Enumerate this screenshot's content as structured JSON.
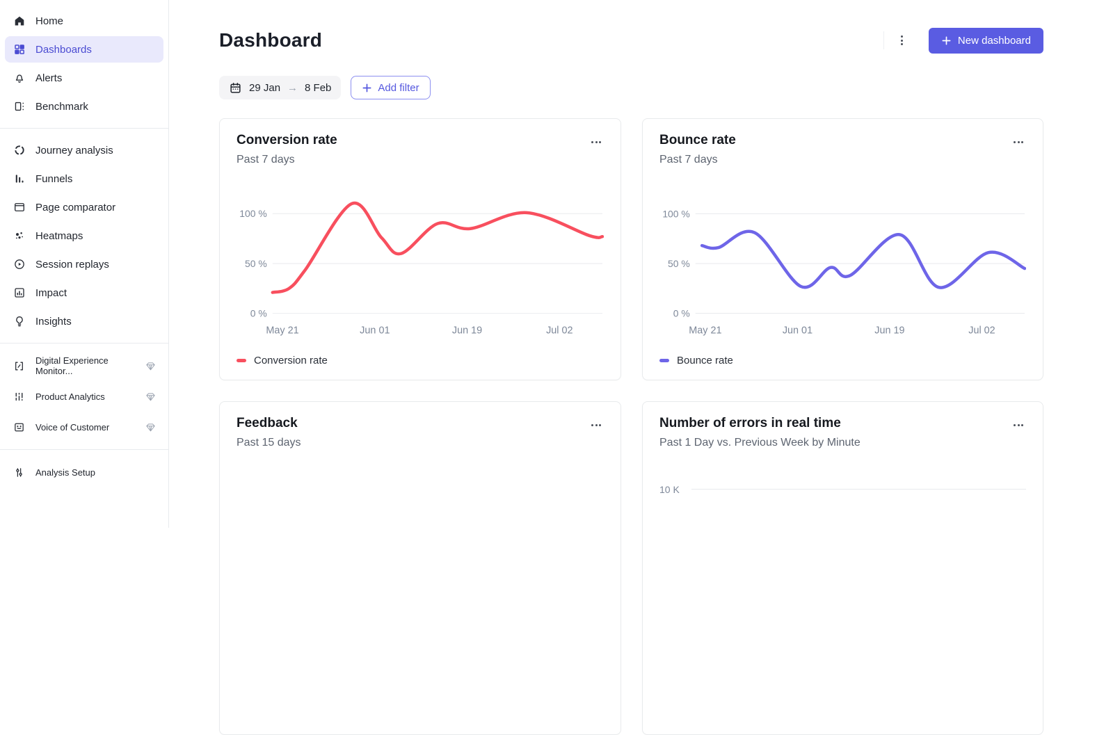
{
  "theme": {
    "primary": "#5A5CE2",
    "sidebar_active_bg": "#E9E9FC",
    "sidebar_active_text": "#4A4BD2",
    "card_border": "#E8EAEC",
    "grid_line": "#E8EAED",
    "tick_text": "#7E8899"
  },
  "sidebar": {
    "groups": [
      {
        "items": [
          {
            "label": "Home",
            "icon": "home-icon"
          },
          {
            "label": "Dashboards",
            "icon": "dashboards-icon",
            "active": true
          },
          {
            "label": "Alerts",
            "icon": "bell-icon"
          },
          {
            "label": "Benchmark",
            "icon": "benchmark-icon"
          }
        ]
      },
      {
        "items": [
          {
            "label": "Journey analysis",
            "icon": "journey-analysis-icon"
          },
          {
            "label": "Funnels",
            "icon": "funnels-icon"
          },
          {
            "label": "Page comparator",
            "icon": "page-comparator-icon"
          },
          {
            "label": "Heatmaps",
            "icon": "heatmaps-icon"
          },
          {
            "label": "Session replays",
            "icon": "session-replays-icon"
          },
          {
            "label": "Impact",
            "icon": "impact-icon"
          },
          {
            "label": "Insights",
            "icon": "insights-icon"
          }
        ]
      },
      {
        "items": [
          {
            "label": "Digital Experience Monitor...",
            "icon": "dem-icon",
            "premium": true
          },
          {
            "label": "Product Analytics",
            "icon": "product-analytics-icon",
            "premium": true
          },
          {
            "label": "Voice of Customer",
            "icon": "voice-of-customer-icon",
            "premium": true
          }
        ]
      },
      {
        "items": [
          {
            "label": "Analysis Setup",
            "icon": "analysis-setup-icon"
          }
        ]
      }
    ]
  },
  "header": {
    "title": "Dashboard",
    "menu_icon": "kebab-icon",
    "new_dashboard_button": {
      "icon": "plus-icon",
      "label": "New dashboard"
    }
  },
  "filter_bar": {
    "date_range": {
      "icon": "calendar-icon",
      "start": "29 Jan",
      "arrow": "→",
      "end": "8 Feb"
    },
    "add_filter_button": {
      "icon": "plus-icon",
      "label": "Add filter"
    }
  },
  "chart_data": [
    {
      "type": "line",
      "title": "Conversion rate",
      "subtitle": "Past 7 days",
      "ylabel_unit": "%",
      "ylim": [
        0,
        115
      ],
      "grid": "horizontal",
      "legend_position": "bottom-left",
      "yticks": [
        {
          "label": "100 %",
          "value": 100
        },
        {
          "label": "50 %",
          "value": 50
        },
        {
          "label": "0 %",
          "value": 0
        }
      ],
      "xticks": [
        {
          "label": "May 21",
          "pos": 0.03
        },
        {
          "label": "Jun 01",
          "pos": 0.31
        },
        {
          "label": "Jun 19",
          "pos": 0.59
        },
        {
          "label": "Jul 02",
          "pos": 0.87
        }
      ],
      "series": [
        {
          "name": "Conversion rate",
          "color": "#F84F5E",
          "points": [
            [
              0,
              21
            ],
            [
              0.05,
              25
            ],
            [
              0.1,
              44
            ],
            [
              0.24,
              110
            ],
            [
              0.33,
              76
            ],
            [
              0.39,
              60
            ],
            [
              0.5,
              90
            ],
            [
              0.6,
              85
            ],
            [
              0.77,
              101
            ],
            [
              0.96,
              78
            ],
            [
              1,
              77
            ]
          ]
        }
      ]
    },
    {
      "type": "line",
      "title": "Bounce rate",
      "subtitle": "Past 7 days",
      "ylabel_unit": "%",
      "ylim": [
        0,
        115
      ],
      "grid": "horizontal",
      "legend_position": "bottom-left",
      "yticks": [
        {
          "label": "100 %",
          "value": 100
        },
        {
          "label": "50 %",
          "value": 50
        },
        {
          "label": "0 %",
          "value": 0
        }
      ],
      "xticks": [
        {
          "label": "May 21",
          "pos": 0.03
        },
        {
          "label": "Jun 01",
          "pos": 0.31
        },
        {
          "label": "Jun 19",
          "pos": 0.59
        },
        {
          "label": "Jul 02",
          "pos": 0.87
        }
      ],
      "series": [
        {
          "name": "Bounce rate",
          "color": "#6E65E8",
          "points": [
            [
              0.02,
              68
            ],
            [
              0.07,
              66
            ],
            [
              0.18,
              81
            ],
            [
              0.32,
              27
            ],
            [
              0.41,
              46
            ],
            [
              0.47,
              38
            ],
            [
              0.62,
              79
            ],
            [
              0.74,
              26
            ],
            [
              0.89,
              61
            ],
            [
              1,
              45
            ]
          ]
        }
      ]
    },
    {
      "type": "empty",
      "title": "Feedback",
      "subtitle": "Past 15 days"
    },
    {
      "type": "line",
      "title": "Number of errors in real time",
      "subtitle": "Past 1 Day vs. Previous Week by Minute",
      "yticks": [
        {
          "label": "10 K"
        }
      ]
    }
  ]
}
